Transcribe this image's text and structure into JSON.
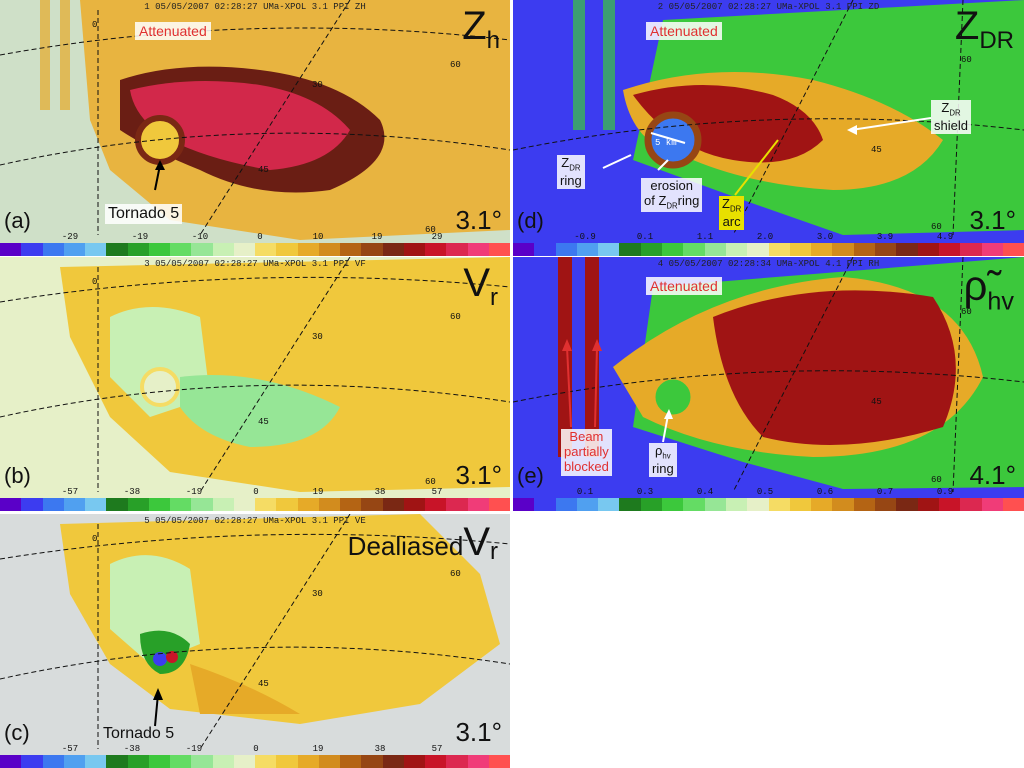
{
  "panels": {
    "a": {
      "header": "1 05/05/2007 02:28:27 UMa-XPOL 3.1 PPI ZH",
      "label": "(a)",
      "title_main": "Z",
      "title_sub": "h",
      "elevation": "3.1°",
      "attenuated": "Attenuated",
      "tornado": "Tornado 5",
      "ticks": [
        "-29",
        "-19",
        "-10",
        "0",
        "10",
        "19",
        "29"
      ],
      "range_labels": [
        "0",
        "30",
        "45",
        "60",
        "60"
      ]
    },
    "b": {
      "header": "3 05/05/2007 02:28:27 UMa-XPOL 3.1 PPI VF",
      "label": "(b)",
      "title_main": "V",
      "title_sub": "r",
      "elevation": "3.1°",
      "ticks": [
        "-57",
        "-38",
        "-19",
        "0",
        "19",
        "38",
        "57"
      ],
      "range_labels": [
        "0",
        "30",
        "45",
        "60",
        "60"
      ]
    },
    "c": {
      "header": "5 05/05/2007 02:28:27 UMa-XPOL 3.1 PPI VE",
      "label": "(c)",
      "title_prefix": "Dealiased",
      "title_main": "V",
      "title_sub": "r",
      "elevation": "3.1°",
      "tornado": "Tornado 5",
      "ticks": [
        "-57",
        "-38",
        "-19",
        "0",
        "19",
        "38",
        "57"
      ],
      "range_labels": [
        "0",
        "30",
        "45",
        "60"
      ]
    },
    "d": {
      "header": "2 05/05/2007 02:28:27 UMa-XPOL 3.1 PPI ZD",
      "label": "(d)",
      "title_main": "Z",
      "title_sub": "DR",
      "elevation": "3.1°",
      "attenuated": "Attenuated",
      "zdr_ring_main": "Z",
      "zdr_ring_sub": "DR",
      "zdr_ring_word": "ring",
      "erosion_line1": "erosion",
      "erosion_of": "of Z",
      "erosion_sub": "DR",
      "erosion_ring": "ring",
      "arc_main": "Z",
      "arc_sub": "DR",
      "arc_word": "arc",
      "shield_main": "Z",
      "shield_sub": "DR",
      "shield_word": "shield",
      "scale": "5 km",
      "ticks": [
        "-0.9",
        "0.1",
        "1.1",
        "2.0",
        "3.0",
        "3.9",
        "4.9"
      ],
      "range_labels": [
        "60",
        "45",
        "60"
      ]
    },
    "e": {
      "header": "4 05/05/2007 02:28:34 UMa-XPOL 4.1 PPI RH",
      "label": "(e)",
      "title_main": "ρ̃",
      "title_sub": "hv",
      "elevation": "4.1°",
      "attenuated": "Attenuated",
      "beam1": "Beam",
      "beam2": "partially",
      "beam3": "blocked",
      "rho_main": "ρ",
      "rho_sub": "hv",
      "rho_word": "ring",
      "ticks": [
        "0.1",
        "0.3",
        "0.4",
        "0.5",
        "0.6",
        "0.7",
        "0.9"
      ],
      "range_labels": [
        "60",
        "45",
        "60"
      ]
    }
  },
  "colormap": [
    "#5a00c8",
    "#3c3cf0",
    "#3c78f0",
    "#50a0f0",
    "#78c8f0",
    "#1e7a1e",
    "#28a028",
    "#3cc83c",
    "#64dc64",
    "#96e696",
    "#c8f0b4",
    "#e6f0c8",
    "#f5dc64",
    "#f0c83c",
    "#e6aa28",
    "#d28c1e",
    "#b46414",
    "#964614",
    "#7a2814",
    "#a01414",
    "#c81428",
    "#dc2850",
    "#f03c78",
    "#ff5050"
  ],
  "colors": {
    "red_annotation": "#e03030",
    "yellow_label": "#e8e000",
    "arrow_black": "#000000",
    "arrow_white": "#ffffff"
  }
}
